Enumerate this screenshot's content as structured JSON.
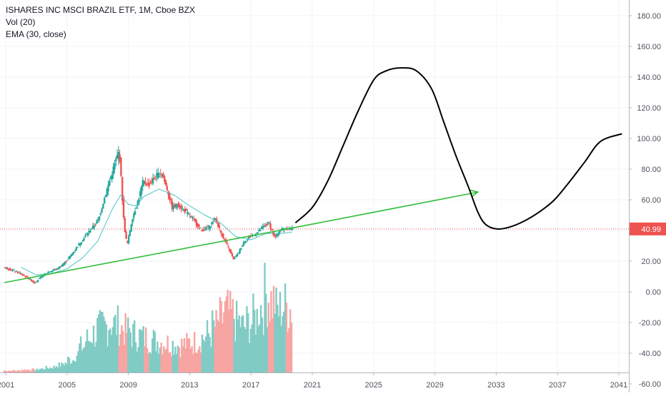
{
  "legend": {
    "symbol_line": "ISHARES INC MSCI BRAZIL ETF, 1M, Cboe BZX",
    "vol_line": "Vol (20)",
    "ema_line": "EMA (30, close)"
  },
  "price_badge": "40.99",
  "colors": {
    "up": "#26a69a",
    "down": "#ef5350",
    "vol_up": "#80cbc4",
    "vol_down": "#f7a5a3",
    "ema": "#4fc3c7",
    "trendline": "#2fbf3a",
    "drawing": "#000000",
    "price_line": "#ef5350",
    "grid": "#f0f3fa",
    "axis_text": "#50535e"
  },
  "chart_data": {
    "type": "candlestick",
    "title": "ISHARES INC MSCI BRAZIL ETF, 1M, Cboe BZX",
    "xlabel": "",
    "ylabel": "",
    "x_ticks": [
      "2001",
      "2005",
      "2009",
      "2013",
      "2017",
      "2021",
      "2025",
      "2029",
      "2033",
      "2037",
      "2041"
    ],
    "y_ticks": [
      "180.00",
      "160.00",
      "140.00",
      "120.00",
      "100.00",
      "80.00",
      "60.00",
      "40.00",
      "20.00",
      "0.00",
      "-20.00",
      "-40.00",
      "-60.00"
    ],
    "ylim": [
      -60,
      190
    ],
    "xlim": [
      2000.9,
      2041.2
    ],
    "last_price": 40.99,
    "price_path": [
      [
        2000.9,
        16
      ],
      [
        2001.5,
        14
      ],
      [
        2002.0,
        12
      ],
      [
        2002.5,
        9
      ],
      [
        2002.9,
        6
      ],
      [
        2003.3,
        9
      ],
      [
        2003.8,
        13
      ],
      [
        2004.4,
        15
      ],
      [
        2005.0,
        20
      ],
      [
        2005.6,
        28
      ],
      [
        2006.2,
        36
      ],
      [
        2006.7,
        42
      ],
      [
        2007.1,
        47
      ],
      [
        2007.5,
        62
      ],
      [
        2007.9,
        75
      ],
      [
        2008.2,
        85
      ],
      [
        2008.45,
        92
      ],
      [
        2008.75,
        45
      ],
      [
        2008.95,
        30
      ],
      [
        2009.3,
        48
      ],
      [
        2009.7,
        60
      ],
      [
        2010.0,
        72
      ],
      [
        2010.4,
        70
      ],
      [
        2010.8,
        75
      ],
      [
        2011.2,
        78
      ],
      [
        2011.6,
        66
      ],
      [
        2011.9,
        55
      ],
      [
        2012.3,
        57
      ],
      [
        2012.8,
        52
      ],
      [
        2013.3,
        47
      ],
      [
        2013.8,
        40
      ],
      [
        2014.3,
        42
      ],
      [
        2014.7,
        48
      ],
      [
        2015.1,
        38
      ],
      [
        2015.5,
        30
      ],
      [
        2015.9,
        21
      ],
      [
        2016.2,
        25
      ],
      [
        2016.6,
        33
      ],
      [
        2017.0,
        36
      ],
      [
        2017.4,
        38
      ],
      [
        2017.8,
        42
      ],
      [
        2018.2,
        45
      ],
      [
        2018.6,
        35
      ],
      [
        2018.9,
        40
      ],
      [
        2019.3,
        42
      ],
      [
        2019.7,
        40.99
      ]
    ],
    "ema_path": [
      [
        2002.0,
        16
      ],
      [
        2003.0,
        11
      ],
      [
        2004.0,
        12
      ],
      [
        2005.0,
        15
      ],
      [
        2006.0,
        22
      ],
      [
        2007.0,
        33
      ],
      [
        2008.0,
        55
      ],
      [
        2008.5,
        63
      ],
      [
        2009.0,
        57
      ],
      [
        2009.5,
        56
      ],
      [
        2010.0,
        62
      ],
      [
        2011.0,
        67
      ],
      [
        2012.0,
        63
      ],
      [
        2013.0,
        56
      ],
      [
        2014.0,
        50
      ],
      [
        2015.0,
        45
      ],
      [
        2016.0,
        36
      ],
      [
        2017.0,
        34
      ],
      [
        2018.0,
        38
      ],
      [
        2019.0,
        38
      ],
      [
        2019.7,
        39
      ]
    ],
    "volume_relative": [
      0.02,
      0.02,
      0.02,
      0.03,
      0.03,
      0.03,
      0.04,
      0.05,
      0.06,
      0.08,
      0.1,
      0.14,
      0.2,
      0.28,
      0.36,
      0.42,
      0.48,
      0.5,
      0.55,
      0.52,
      0.48,
      0.45,
      0.42,
      0.4,
      0.38,
      0.36,
      0.34,
      0.33,
      0.32,
      0.31,
      0.3,
      0.31,
      0.33,
      0.35,
      0.38,
      0.42,
      0.5,
      0.58,
      0.66,
      0.62,
      0.55,
      0.5,
      0.54,
      0.6,
      0.72,
      0.85,
      0.78,
      0.68,
      0.72,
      0.7
    ],
    "trendline": {
      "x": [
        2000.9,
        2019.9
      ],
      "y": [
        6,
        42
      ]
    },
    "trend_arrow": {
      "x": [
        2019.9,
        2031.8
      ],
      "y": [
        42,
        65
      ]
    },
    "freehand_projection": [
      [
        2019.9,
        45
      ],
      [
        2021.0,
        55
      ],
      [
        2022.0,
        72
      ],
      [
        2023.0,
        95
      ],
      [
        2024.0,
        118
      ],
      [
        2025.0,
        138
      ],
      [
        2025.8,
        144
      ],
      [
        2026.8,
        146
      ],
      [
        2027.8,
        144
      ],
      [
        2028.8,
        132
      ],
      [
        2029.6,
        110
      ],
      [
        2030.4,
        88
      ],
      [
        2031.2,
        68
      ],
      [
        2031.8,
        52
      ],
      [
        2032.3,
        44
      ],
      [
        2033.0,
        41
      ],
      [
        2033.8,
        42
      ],
      [
        2034.8,
        46
      ],
      [
        2035.8,
        52
      ],
      [
        2036.8,
        60
      ],
      [
        2037.8,
        72
      ],
      [
        2038.8,
        85
      ],
      [
        2039.8,
        98
      ],
      [
        2041.2,
        103
      ]
    ]
  }
}
